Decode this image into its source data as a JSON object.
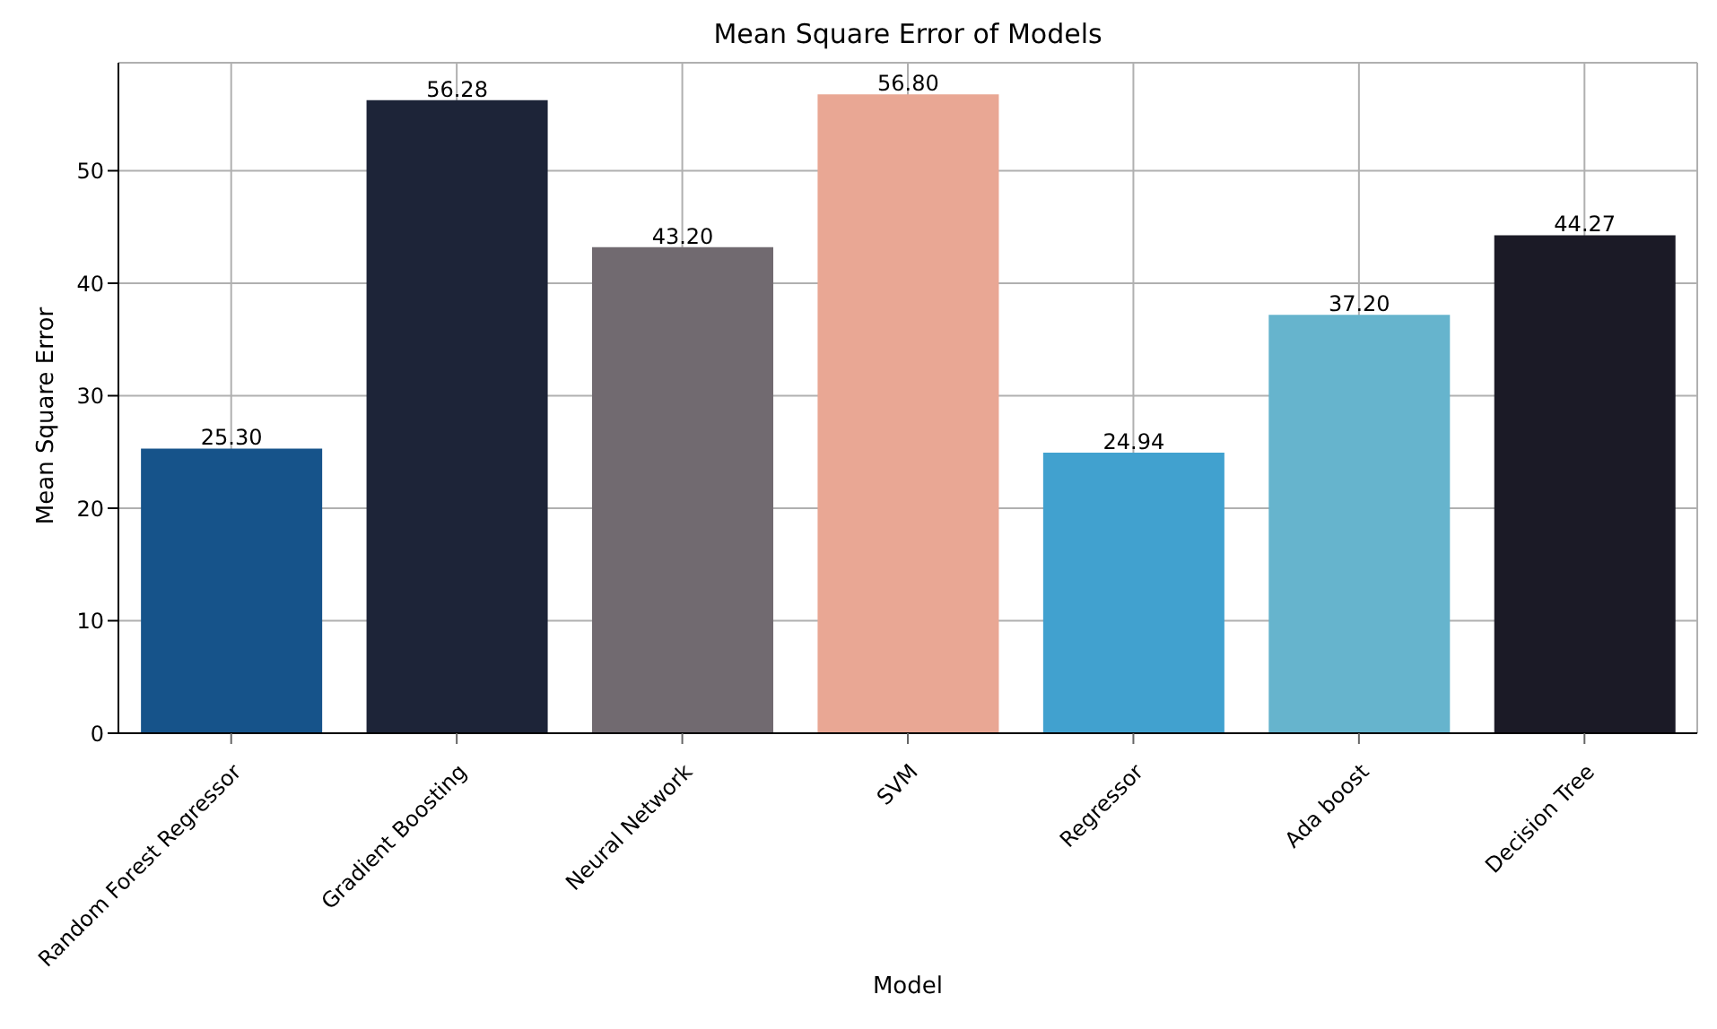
{
  "chart_data": {
    "type": "bar",
    "title": "Mean Square Error of Models",
    "xlabel": "Model",
    "ylabel": "Mean Square Error",
    "categories": [
      "Random Forest Regressor",
      "Gradient Boosting",
      "Neural Network",
      "SVM",
      "Regressor",
      "Ada boost",
      "Decision Tree"
    ],
    "values": [
      25.3,
      56.28,
      43.2,
      56.8,
      24.94,
      37.2,
      44.27
    ],
    "value_labels": [
      "25.30",
      "56.28",
      "43.20",
      "56.80",
      "24.94",
      "37.20",
      "44.27"
    ],
    "colors": [
      "#16538a",
      "#1d2438",
      "#716a70",
      "#e9a794",
      "#41a1cf",
      "#66b4cd",
      "#1b1a26"
    ],
    "ylim": [
      0,
      59.6
    ],
    "yticks": [
      0,
      10,
      20,
      30,
      40,
      50
    ],
    "grid": true
  }
}
